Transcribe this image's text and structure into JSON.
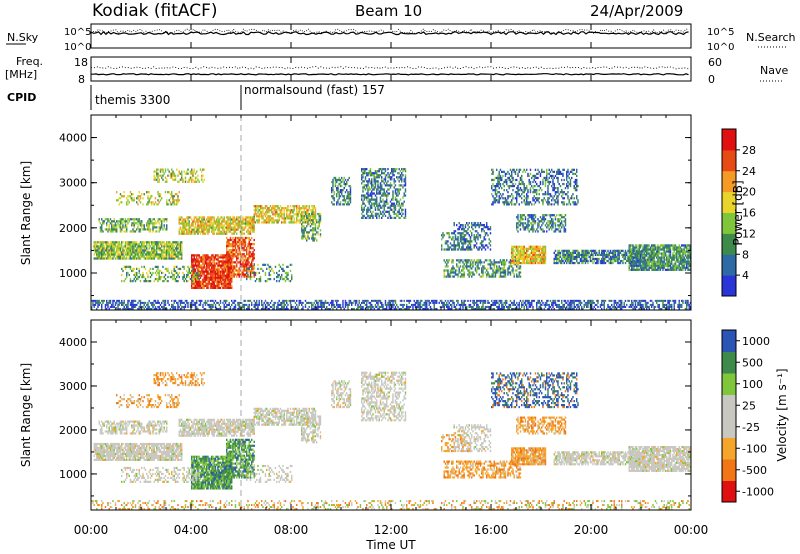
{
  "header": {
    "station": "Kodiak (fitACF)",
    "beam": "Beam 10",
    "date": "24/Apr/2009"
  },
  "sky_panel": {
    "left_label": "N.Sky",
    "right_label": "N.Search",
    "left_ticks": [
      "10^5",
      "10^0"
    ],
    "right_ticks": [
      "10^5",
      "10^0"
    ]
  },
  "freq_panel": {
    "left_label_line1": "Freq.",
    "left_label_line2": "[MHz]",
    "left_ticks": [
      "18",
      "8"
    ],
    "right_label": "Nave",
    "right_ticks": [
      "60",
      "0"
    ]
  },
  "cpid": {
    "label": "CPID",
    "segments": [
      {
        "start_hour": 0,
        "text": "themis 3300"
      },
      {
        "start_hour": 6,
        "text": "normalsound (fast) 157"
      }
    ]
  },
  "x_axis": {
    "label": "Time UT",
    "ticks": [
      "00:00",
      "04:00",
      "08:00",
      "12:00",
      "16:00",
      "20:00",
      "00:00"
    ]
  },
  "colors": {
    "power": [
      "#2a35d8",
      "#2d6aa6",
      "#3e8a4b",
      "#7fc63b",
      "#e8d42a",
      "#f59a25",
      "#e84a16",
      "#e01010"
    ],
    "velocity": [
      "#e01010",
      "#f27516",
      "#f5a52b",
      "#c8c8c0",
      "#c8c8c0",
      "#7fc63b",
      "#3e8a4b",
      "#2a55b5"
    ]
  },
  "chart_data": [
    {
      "type": "heatmap",
      "title": "",
      "xlabel": "Time UT",
      "ylabel": "Slant Range [km]",
      "xlim": [
        0,
        24
      ],
      "ylim": [
        180,
        4500
      ],
      "yticks": [
        1000,
        2000,
        3000,
        4000
      ],
      "xticks": [
        "00:00",
        "04:00",
        "08:00",
        "12:00",
        "16:00",
        "20:00",
        "00:00"
      ],
      "colorbar": {
        "label": "Power [dB]",
        "ticks": [
          4,
          8,
          12,
          16,
          20,
          24,
          28
        ],
        "range": [
          0,
          32
        ]
      }
    },
    {
      "type": "heatmap",
      "title": "",
      "xlabel": "Time UT",
      "ylabel": "Slant Range [km]",
      "xlim": [
        0,
        24
      ],
      "ylim": [
        180,
        4500
      ],
      "yticks": [
        1000,
        2000,
        3000,
        4000
      ],
      "xticks": [
        "00:00",
        "04:00",
        "08:00",
        "12:00",
        "16:00",
        "20:00",
        "00:00"
      ],
      "colorbar": {
        "label": "Velocity [m s⁻¹]",
        "ticks": [
          "1000",
          "500",
          "100",
          "25",
          "-25",
          "-100",
          "-500",
          "-1000"
        ]
      }
    }
  ]
}
